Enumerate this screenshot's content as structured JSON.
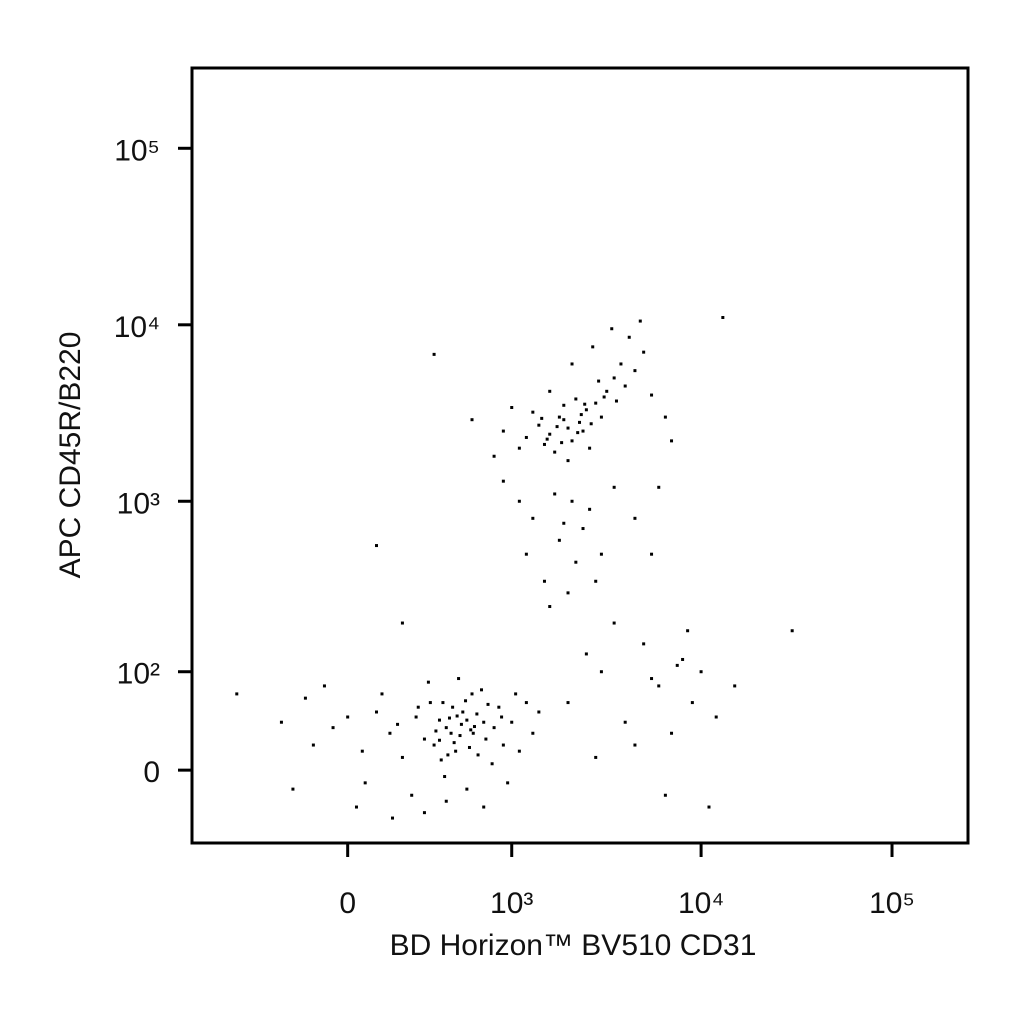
{
  "chart_data": {
    "type": "scatter",
    "x_label": "BD Horizon™ BV510 CD31",
    "y_label": "APC CD45R/B220",
    "xscale": "biexponential",
    "yscale": "biexponential",
    "color": "#000000",
    "xlim": [
      -900,
      250000
    ],
    "ylim": [
      -66,
      285000
    ],
    "xticks": [
      0,
      {
        "value": 1000,
        "label": "10³"
      },
      {
        "value": 10000,
        "label": "10⁴"
      },
      {
        "value": 100000,
        "label": "10⁵"
      }
    ],
    "yticks": [
      0,
      {
        "value": 100,
        "label": "10²"
      },
      {
        "value": 1000,
        "label": "10³"
      },
      {
        "value": 10000,
        "label": "10⁴"
      },
      {
        "value": 100000,
        "label": "10⁵"
      }
    ],
    "x": [
      420,
      510,
      380,
      610,
      460,
      350,
      700,
      550,
      300,
      480,
      640,
      390,
      520,
      450,
      580,
      720,
      260,
      330,
      410,
      600,
      800,
      900,
      150,
      200,
      100,
      -50,
      -120,
      0,
      60,
      120,
      240,
      320,
      500,
      680,
      850,
      1000,
      1100,
      1300,
      950,
      780,
      420,
      560,
      300,
      -200,
      -250,
      -150,
      50,
      180,
      270,
      360,
      440,
      530,
      620,
      470,
      400,
      560,
      650,
      740,
      880,
      1200,
      -80,
      30,
      160,
      700,
      1050,
      1400,
      380,
      490,
      590,
      430,
      2000,
      1800,
      2300,
      1600,
      2500,
      1500,
      2100,
      2800,
      3200,
      1900,
      1400,
      2600,
      3500,
      4000,
      1200,
      2200,
      1700,
      3000,
      2400,
      1300,
      2900,
      3800,
      4500,
      1100,
      900,
      1000,
      800,
      5000,
      4200,
      3400,
      2700,
      1600,
      600,
      2000,
      3600,
      5500,
      6500,
      7000,
      4800,
      2100,
      1900,
      2350,
      1750,
      2650,
      1550,
      2450,
      3100,
      1850,
      2250,
      1450,
      1300,
      1800,
      2200,
      1500,
      2600,
      1100,
      3000,
      2000,
      1700,
      2400,
      3500,
      1200,
      900,
      4500,
      5500,
      2800,
      1600,
      2100,
      6000,
      1900,
      2000,
      3000,
      4000,
      5000,
      6000,
      7000,
      8000,
      9000,
      10000,
      12000,
      15000,
      3500,
      4500,
      2500,
      6500,
      11000,
      8500,
      5500,
      7500,
      2800,
      30000,
      13000,
      -500,
      100,
      200,
      350
    ],
    "values": [
      35,
      28,
      42,
      30,
      55,
      20,
      40,
      62,
      25,
      15,
      48,
      8,
      38,
      30,
      18,
      25,
      45,
      60,
      -5,
      70,
      35,
      20,
      30,
      10,
      50,
      35,
      20,
      45,
      -10,
      70,
      -20,
      85,
      90,
      75,
      55,
      40,
      15,
      30,
      -10,
      5,
      -25,
      -15,
      -35,
      -15,
      40,
      65,
      15,
      38,
      55,
      32,
      44,
      50,
      36,
      22,
      60,
      42,
      12,
      58,
      45,
      60,
      80,
      -30,
      -40,
      -30,
      70,
      50,
      24,
      46,
      33,
      12,
      2600,
      3000,
      2800,
      2400,
      3300,
      2100,
      2200,
      3600,
      4200,
      3500,
      2700,
      2000,
      5000,
      4500,
      2300,
      3800,
      1900,
      3000,
      2500,
      3200,
      4800,
      6000,
      5500,
      2000,
      2500,
      3400,
      1800,
      7000,
      8500,
      9500,
      7500,
      4200,
      2900,
      1700,
      3700,
      4000,
      3000,
      2200,
      10500,
      6000,
      2900,
      3100,
      2650,
      2750,
      2250,
      3550,
      3900,
      2150,
      2450,
      2950,
      800,
      600,
      450,
      350,
      900,
      1000,
      500,
      300,
      1100,
      700,
      1200,
      500,
      1300,
      800,
      500,
      350,
      250,
      1000,
      1200,
      750,
      60,
      100,
      40,
      150,
      80,
      30,
      120,
      60,
      100,
      45,
      80,
      200,
      20,
      130,
      -20,
      -30,
      180,
      90,
      110,
      10,
      180,
      11000,
      70,
      560,
      200,
      6800
    ]
  }
}
